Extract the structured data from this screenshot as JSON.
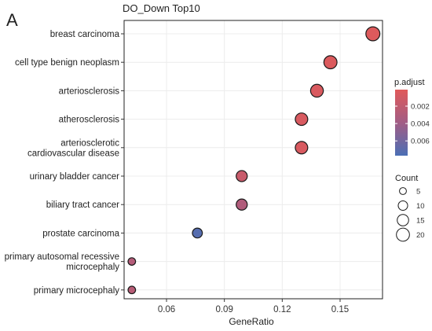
{
  "panel_letter": "A",
  "chart_data": {
    "type": "scatter",
    "title": "DO_Down Top10",
    "xlabel": "GeneRatio",
    "ylabel": "",
    "xlim": [
      0.038,
      0.172
    ],
    "xticks": [
      0.06,
      0.09,
      0.12,
      0.15
    ],
    "xtick_labels": [
      "0.06",
      "0.09",
      "0.12",
      "0.15"
    ],
    "grid": true,
    "categories": [
      [
        "breast carcinoma"
      ],
      [
        "cell type benign neoplasm"
      ],
      [
        "arteriosclerosis"
      ],
      [
        "atherosclerosis"
      ],
      [
        "arteriosclerotic",
        "cardiovascular disease"
      ],
      [
        "urinary bladder cancer"
      ],
      [
        "biliary tract cancer"
      ],
      [
        "prostate carcinoma"
      ],
      [
        "primary autosomal recessive",
        "microcephaly"
      ],
      [
        "primary microcephaly"
      ]
    ],
    "points": [
      {
        "x": 0.167,
        "count": 23,
        "p_adjust": 0.0003
      },
      {
        "x": 0.145,
        "count": 20,
        "p_adjust": 0.0004
      },
      {
        "x": 0.138,
        "count": 19,
        "p_adjust": 0.0005
      },
      {
        "x": 0.13,
        "count": 18,
        "p_adjust": 0.0006
      },
      {
        "x": 0.13,
        "count": 18,
        "p_adjust": 0.0006
      },
      {
        "x": 0.099,
        "count": 14,
        "p_adjust": 0.0016
      },
      {
        "x": 0.099,
        "count": 14,
        "p_adjust": 0.003
      },
      {
        "x": 0.076,
        "count": 11,
        "p_adjust": 0.0072
      },
      {
        "x": 0.042,
        "count": 6,
        "p_adjust": 0.0028
      },
      {
        "x": 0.042,
        "count": 6,
        "p_adjust": 0.0026
      }
    ],
    "color_legend": {
      "title": "p.adjust",
      "ticks": [
        0.002,
        0.004,
        0.006
      ],
      "tick_labels": [
        "0.002",
        "0.004",
        "0.006"
      ],
      "range": [
        0.0001,
        0.0077
      ],
      "low_color": "#e05a5a",
      "mid_color": "#a25d85",
      "high_color": "#4b6fb5",
      "placement": "right"
    },
    "size_legend": {
      "title": "Count",
      "values": [
        5,
        10,
        15,
        20
      ],
      "labels": [
        "5",
        "10",
        "15",
        "20"
      ],
      "placement": "right"
    }
  }
}
